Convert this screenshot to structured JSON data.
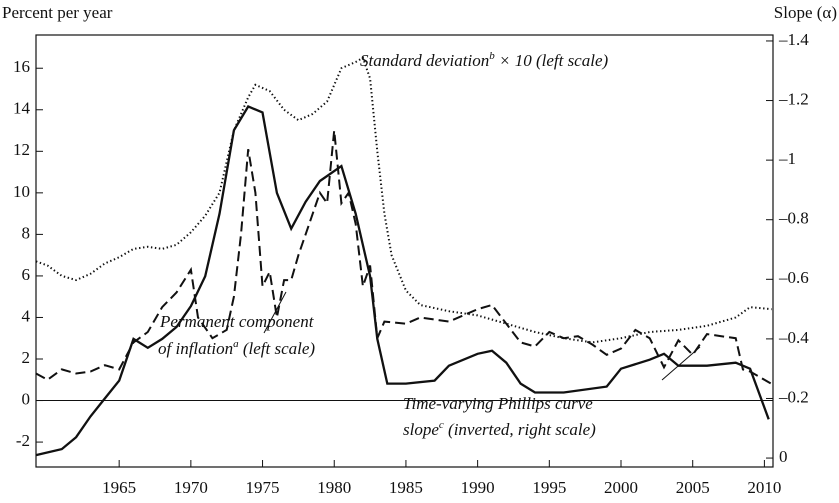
{
  "chart_data": {
    "type": "line",
    "y_label": "Percent per year",
    "y2_label": "Slope (α)",
    "xlim": [
      1959.2,
      2010.6
    ],
    "xticks": [
      1965,
      1970,
      1975,
      1980,
      1985,
      1990,
      1995,
      2000,
      2005,
      2010
    ],
    "ylim": [
      -3.2,
      17.6
    ],
    "yticks": [
      -2,
      0,
      2,
      4,
      6,
      8,
      10,
      12,
      14,
      16
    ],
    "y2lim": [
      0.03,
      -1.42
    ],
    "y2ticks": [
      {
        "value": -1.4,
        "label": "–1.4"
      },
      {
        "value": -1.2,
        "label": "–1.2"
      },
      {
        "value": -1,
        "label": "–1"
      },
      {
        "value": -0.8,
        "label": "–0.8"
      },
      {
        "value": -0.6,
        "label": "–0.6"
      },
      {
        "value": -0.4,
        "label": "–0.4"
      },
      {
        "value": -0.2,
        "label": "–0.2"
      },
      0
    ],
    "series": [
      {
        "name": "Standard deviation × 10",
        "color": "#111111",
        "style": "dotted",
        "x": [
          1959.2,
          1960,
          1961,
          1962,
          1963,
          1964,
          1965,
          1966,
          1967,
          1968,
          1969,
          1970,
          1971,
          1972,
          1973,
          1974,
          1974.5,
          1975.5,
          1976.5,
          1977.5,
          1978.5,
          1979.5,
          1980.5,
          1981.5,
          1982,
          1982.5,
          1983,
          1983.5,
          1984,
          1985,
          1986,
          1988,
          1990,
          1992,
          1994,
          1996,
          1998,
          2000,
          2002,
          2004,
          2006,
          2008,
          2009,
          2010.5
        ],
        "values": [
          6.7,
          6.5,
          6.0,
          5.8,
          6.1,
          6.6,
          6.9,
          7.3,
          7.4,
          7.3,
          7.5,
          8.1,
          8.9,
          10.0,
          13.0,
          14.6,
          15.2,
          14.9,
          14.0,
          13.5,
          13.8,
          14.4,
          16.0,
          16.3,
          16.5,
          15.5,
          12.0,
          9.0,
          7.0,
          5.3,
          4.6,
          4.3,
          4.1,
          3.7,
          3.3,
          3.0,
          2.8,
          3.0,
          3.3,
          3.4,
          3.6,
          4.0,
          4.5,
          4.4
        ]
      },
      {
        "name": "Permanent component of inflation",
        "color": "#111111",
        "style": "dashed",
        "x": [
          1959.2,
          1960,
          1961,
          1962,
          1963,
          1964,
          1965,
          1966,
          1967,
          1968,
          1969,
          1970,
          1970.5,
          1971,
          1971.5,
          1972.5,
          1973,
          1973.5,
          1974,
          1974.5,
          1975,
          1975.5,
          1976,
          1976.5,
          1977,
          1977.5,
          1978,
          1979,
          1979.5,
          1980,
          1980.5,
          1981,
          1981.5,
          1982,
          1982.5,
          1983,
          1983.5,
          1985,
          1986,
          1988,
          1990,
          1991,
          1992,
          1993,
          1994,
          1995,
          1996,
          1997,
          1998,
          1999,
          2000,
          2001,
          2002,
          2003,
          2004,
          2005,
          2006,
          2007,
          2008,
          2008.5,
          2009,
          2010,
          2010.5
        ],
        "values": [
          1.3,
          1.0,
          1.5,
          1.3,
          1.4,
          1.7,
          1.5,
          2.8,
          3.3,
          4.5,
          5.2,
          6.3,
          4.0,
          3.5,
          3.0,
          3.4,
          5.0,
          8.0,
          12.1,
          10.0,
          5.5,
          6.2,
          4.0,
          5.8,
          5.8,
          7.0,
          8.0,
          10.0,
          9.5,
          13.0,
          9.5,
          10.0,
          8.5,
          5.5,
          6.5,
          3.0,
          3.8,
          3.7,
          4.0,
          3.8,
          4.4,
          4.6,
          3.7,
          2.8,
          2.6,
          3.3,
          3.0,
          3.1,
          2.7,
          2.2,
          2.5,
          3.4,
          3.0,
          1.6,
          2.9,
          2.2,
          3.2,
          3.1,
          3.0,
          1.5,
          1.4,
          1.0,
          0.8
        ]
      },
      {
        "name": "Time-varying Phillips curve slope",
        "color": "#111111",
        "style": "solid",
        "axis": "y2",
        "x": [
          1959.2,
          1961,
          1962,
          1963,
          1964,
          1965,
          1966,
          1967,
          1968,
          1969,
          1970,
          1971,
          1972,
          1973,
          1974,
          1975,
          1976,
          1977,
          1978,
          1979,
          1980.5,
          1981.5,
          1982.5,
          1983,
          1983.7,
          1985,
          1987,
          1988,
          1990,
          1991,
          1992,
          1993,
          1994,
          1996,
          1999,
          2000,
          2002,
          2003,
          2004,
          2006,
          2008,
          2009,
          2010.3
        ],
        "values": [
          -0.01,
          -0.03,
          -0.07,
          -0.14,
          -0.2,
          -0.26,
          -0.4,
          -0.37,
          -0.4,
          -0.44,
          -0.51,
          -0.61,
          -0.82,
          -1.1,
          -1.18,
          -1.16,
          -0.89,
          -0.77,
          -0.86,
          -0.93,
          -0.98,
          -0.82,
          -0.61,
          -0.4,
          -0.25,
          -0.25,
          -0.26,
          -0.31,
          -0.35,
          -0.36,
          -0.32,
          -0.25,
          -0.22,
          -0.22,
          -0.24,
          -0.3,
          -0.33,
          -0.35,
          -0.31,
          -0.31,
          -0.32,
          -0.3,
          -0.13
        ]
      }
    ],
    "annotations": [
      {
        "before": "Standard deviation",
        "sup": "b",
        "after": " × 10 (left scale)"
      },
      {
        "before": "Permanent component"
      },
      {
        "before": "of inflation",
        "sup": "a",
        "after": " (left scale)"
      },
      {
        "before": "Time-varying Phillips curve"
      },
      {
        "before": "slope",
        "sup": "c",
        "after": " (inverted, right scale)"
      }
    ]
  }
}
